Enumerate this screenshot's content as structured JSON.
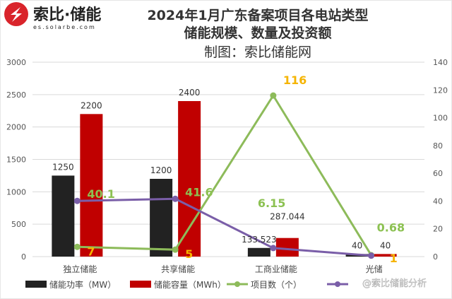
{
  "logo": {
    "name": "索比·储能",
    "url": "es.solarbe.com"
  },
  "chart_data": {
    "type": "bar+line",
    "title": "2024年1月广东备案项目各电站类型",
    "title2": "储能规模、数量及投资额",
    "subtitle": "制图：索比储能网",
    "categories": [
      "独立储能",
      "共享储能",
      "工商业储能",
      "光储"
    ],
    "left_axis": {
      "range": [
        0,
        3000
      ],
      "ticks": [
        0,
        500,
        1000,
        1500,
        2000,
        2500,
        3000
      ]
    },
    "right_axis": {
      "range": [
        0,
        140
      ],
      "ticks": [
        0,
        20,
        40,
        60,
        80,
        100,
        120,
        140
      ]
    },
    "grid": true,
    "legend_position": "bottom",
    "series": [
      {
        "name": "储能功率（MW）",
        "type": "bar",
        "axis": "left",
        "color": "#222222",
        "values": [
          1250,
          1200,
          133.523,
          40
        ],
        "labels": [
          "1250",
          "1200",
          "133.523",
          "40"
        ]
      },
      {
        "name": "储能容量（MWh）",
        "type": "bar",
        "axis": "left",
        "color": "#c00000",
        "values": [
          2200,
          2400,
          287.044,
          40
        ],
        "labels": [
          "2200",
          "2400",
          "287.044",
          "40"
        ]
      },
      {
        "name": "项目数（个）",
        "type": "line",
        "axis": "right",
        "color": "#8dbb5a",
        "label_color": "#f5b400",
        "values": [
          7,
          5,
          116,
          1
        ],
        "labels": [
          "7",
          "5",
          "116",
          "1"
        ]
      },
      {
        "name": "",
        "type": "line",
        "axis": "right",
        "color": "#7a5ea8",
        "label_color": "#8cc152",
        "values": [
          40.1,
          41.6,
          6.15,
          0.68
        ],
        "labels": [
          "40.1",
          "41.6",
          "6.15",
          "0.68"
        ]
      }
    ]
  },
  "watermark": "@索比储能分析"
}
